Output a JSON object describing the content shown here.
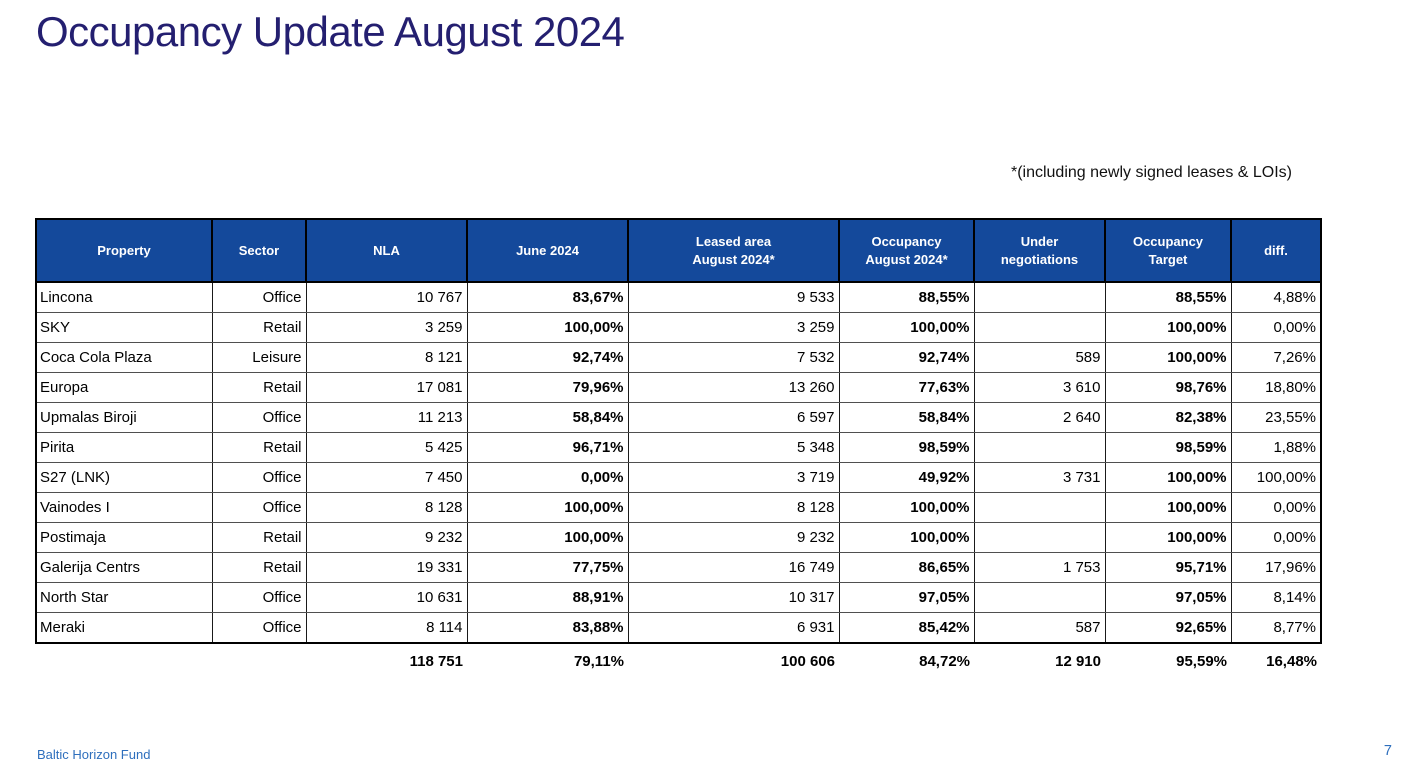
{
  "slide": {
    "title": "Occupancy Update August 2024",
    "note": "*(including newly signed leases & LOIs)",
    "footer": "Baltic Horizon Fund",
    "page_number": "7"
  },
  "colors": {
    "header_bg": "#14499b",
    "title_text": "#241f70",
    "footer_text": "#2e6fbd"
  },
  "table": {
    "columns": [
      "Property",
      "Sector",
      "NLA",
      "June 2024",
      "Leased area\nAugust 2024*",
      "Occupancy\nAugust 2024*",
      "Under\nnegotiations",
      "Occupancy\nTarget",
      "diff."
    ],
    "rows": [
      [
        "Lincona",
        "Office",
        "10 767",
        "83,67%",
        "9 533",
        "88,55%",
        "",
        "88,55%",
        "4,88%"
      ],
      [
        "SKY",
        "Retail",
        "3 259",
        "100,00%",
        "3 259",
        "100,00%",
        "",
        "100,00%",
        "0,00%"
      ],
      [
        "Coca Cola Plaza",
        "Leisure",
        "8 121",
        "92,74%",
        "7 532",
        "92,74%",
        "589",
        "100,00%",
        "7,26%"
      ],
      [
        "Europa",
        "Retail",
        "17 081",
        "79,96%",
        "13 260",
        "77,63%",
        "3 610",
        "98,76%",
        "18,80%"
      ],
      [
        "Upmalas Biroji",
        "Office",
        "11 213",
        "58,84%",
        "6 597",
        "58,84%",
        "2 640",
        "82,38%",
        "23,55%"
      ],
      [
        "Pirita",
        "Retail",
        "5 425",
        "96,71%",
        "5 348",
        "98,59%",
        "",
        "98,59%",
        "1,88%"
      ],
      [
        "S27 (LNK)",
        "Office",
        "7 450",
        "0,00%",
        "3 719",
        "49,92%",
        "3 731",
        "100,00%",
        "100,00%"
      ],
      [
        "Vainodes I",
        "Office",
        "8 128",
        "100,00%",
        "8 128",
        "100,00%",
        "",
        "100,00%",
        "0,00%"
      ],
      [
        "Postimaja",
        "Retail",
        "9 232",
        "100,00%",
        "9 232",
        "100,00%",
        "",
        "100,00%",
        "0,00%"
      ],
      [
        "Galerija Centrs",
        "Retail",
        "19 331",
        "77,75%",
        "16 749",
        "86,65%",
        "1 753",
        "95,71%",
        "17,96%"
      ],
      [
        "North Star",
        "Office",
        "10 631",
        "88,91%",
        "10 317",
        "97,05%",
        "",
        "97,05%",
        "8,14%"
      ],
      [
        "Meraki",
        "Office",
        "8 114",
        "83,88%",
        "6 931",
        "85,42%",
        "587",
        "92,65%",
        "8,77%"
      ]
    ],
    "totals": [
      "",
      "",
      "118 751",
      "79,11%",
      "100 606",
      "84,72%",
      "12 910",
      "95,59%",
      "16,48%"
    ]
  }
}
